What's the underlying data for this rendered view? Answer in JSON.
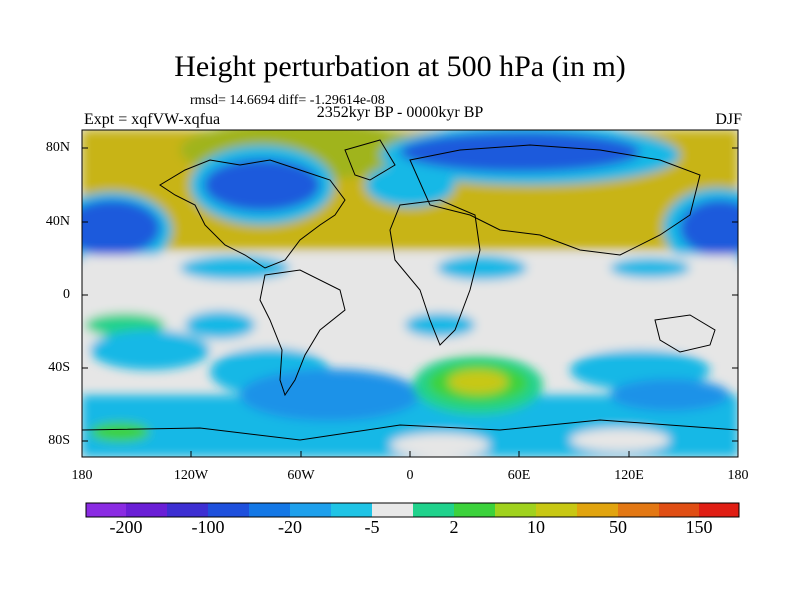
{
  "title": "Height perturbation at 500 hPa (in m)",
  "rmsd_line": "rmsd= 14.6694 diff= -1.29614e-08",
  "experiment": "Expt = xqfVW-xqfua",
  "period": "2352kyr BP - 0000kyr BP",
  "season": "DJF",
  "lat_ticks": [
    "80N",
    "40N",
    "0",
    "40S",
    "80S"
  ],
  "lon_ticks": [
    "180",
    "120W",
    "60W",
    "0",
    "60E",
    "120E",
    "180"
  ],
  "colorbar": {
    "labels": [
      "-200",
      "-100",
      "-20",
      "-5",
      "2",
      "10",
      "50",
      "150"
    ],
    "colors": [
      "#8a2be2",
      "#6a1fd6",
      "#3d2fd2",
      "#1e50dc",
      "#1478e6",
      "#1ea0ec",
      "#20c4e6",
      "#e8e8e8",
      "#20d28c",
      "#3cd23c",
      "#a0d21e",
      "#c8c814",
      "#e1a40f",
      "#e37814",
      "#e04e14",
      "#e01e14"
    ]
  },
  "field_colors": {
    "neutral": "#e6e6e6",
    "cyan": "#18b8e6",
    "lightblue": "#1a92e8",
    "blue": "#1e5adc",
    "darkblue": "#2a3ad0",
    "yellow": "#c8b414",
    "olive": "#a0b41e",
    "green": "#3cd23c",
    "teal": "#20d28c",
    "orange": "#e0a012"
  }
}
